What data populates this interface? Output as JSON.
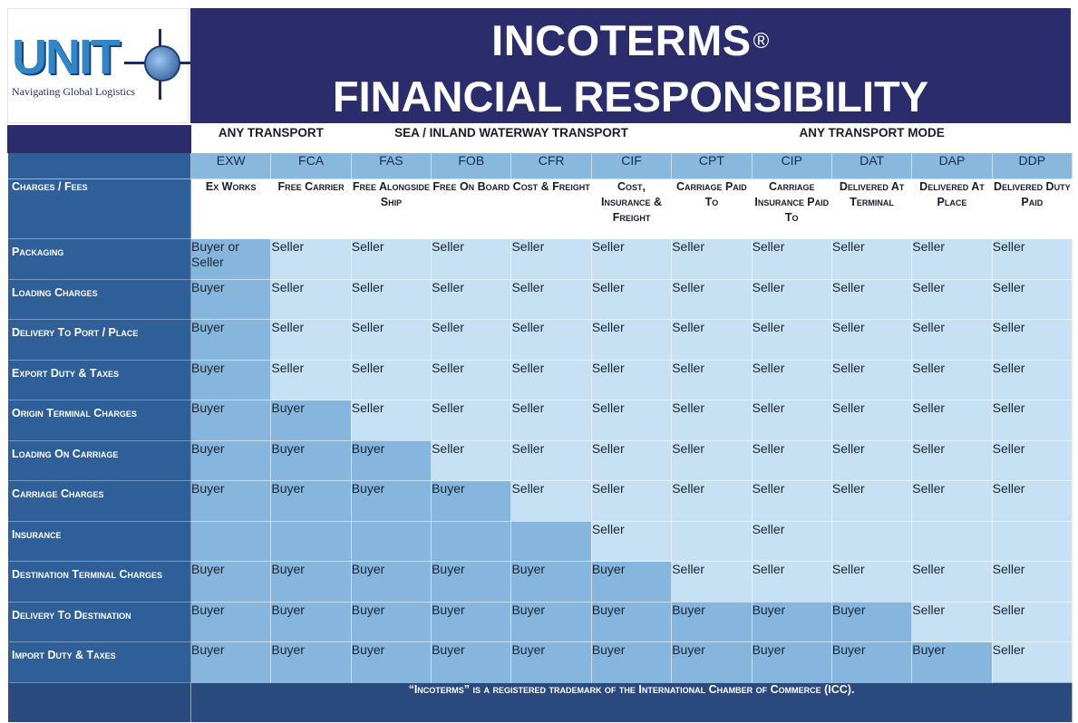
{
  "logo": {
    "name": "UNIT",
    "tagline": "Navigating Global Logistics"
  },
  "header": {
    "title": "INCOTERMS",
    "reg_mark": "®",
    "subtitle": "FINANCIAL RESPONSIBILITY"
  },
  "groups": [
    {
      "label": "ANY TRANSPORT",
      "span": 2
    },
    {
      "label": "SEA / INLAND WATERWAY TRANSPORT",
      "span": 4
    },
    {
      "label": "ANY TRANSPORT MODE",
      "span": 5
    }
  ],
  "charges_header": "Charges / Fees",
  "terms": [
    {
      "code": "EXW",
      "name": "Ex Works"
    },
    {
      "code": "FCA",
      "name": "Free Carrier"
    },
    {
      "code": "FAS",
      "name": "Free Alongside Ship"
    },
    {
      "code": "FOB",
      "name": "Free On Board"
    },
    {
      "code": "CFR",
      "name": "Cost & Freight"
    },
    {
      "code": "CIF",
      "name": "Cost, Insurance & Freight"
    },
    {
      "code": "CPT",
      "name": "Carriage Paid To"
    },
    {
      "code": "CIP",
      "name": "Carriage Insurance Paid To"
    },
    {
      "code": "DAT",
      "name": "Delivered At Terminal"
    },
    {
      "code": "DAP",
      "name": "Delivered At Place"
    },
    {
      "code": "DDP",
      "name": "Delivered Duty Paid"
    }
  ],
  "rows": [
    {
      "label": "Packaging",
      "values": [
        "Buyer or Seller",
        "Seller",
        "Seller",
        "Seller",
        "Seller",
        "Seller",
        "Seller",
        "Seller",
        "Seller",
        "Seller",
        "Seller"
      ]
    },
    {
      "label": "Loading Charges",
      "values": [
        "Buyer",
        "Seller",
        "Seller",
        "Seller",
        "Seller",
        "Seller",
        "Seller",
        "Seller",
        "Seller",
        "Seller",
        "Seller"
      ]
    },
    {
      "label": "Delivery To Port / Place",
      "values": [
        "Buyer",
        "Seller",
        "Seller",
        "Seller",
        "Seller",
        "Seller",
        "Seller",
        "Seller",
        "Seller",
        "Seller",
        "Seller"
      ]
    },
    {
      "label": "Export Duty & Taxes",
      "values": [
        "Buyer",
        "Seller",
        "Seller",
        "Seller",
        "Seller",
        "Seller",
        "Seller",
        "Seller",
        "Seller",
        "Seller",
        "Seller"
      ]
    },
    {
      "label": "Origin Terminal Charges",
      "values": [
        "Buyer",
        "Buyer",
        "Seller",
        "Seller",
        "Seller",
        "Seller",
        "Seller",
        "Seller",
        "Seller",
        "Seller",
        "Seller"
      ]
    },
    {
      "label": "Loading On Carriage",
      "values": [
        "Buyer",
        "Buyer",
        "Buyer",
        "Seller",
        "Seller",
        "Seller",
        "Seller",
        "Seller",
        "Seller",
        "Seller",
        "Seller"
      ]
    },
    {
      "label": "Carriage Charges",
      "values": [
        "Buyer",
        "Buyer",
        "Buyer",
        "Buyer",
        "Seller",
        "Seller",
        "Seller",
        "Seller",
        "Seller",
        "Seller",
        "Seller"
      ]
    },
    {
      "label": "Insurance",
      "values": [
        "",
        "",
        "",
        "",
        "",
        "Seller",
        "",
        "Seller",
        "",
        "",
        ""
      ]
    },
    {
      "label": "Destination Terminal Charges",
      "values": [
        "Buyer",
        "Buyer",
        "Buyer",
        "Buyer",
        "Buyer",
        "Buyer",
        "Seller",
        "Seller",
        "Seller",
        "Seller",
        "Seller"
      ]
    },
    {
      "label": "Delivery To Destination",
      "values": [
        "Buyer",
        "Buyer",
        "Buyer",
        "Buyer",
        "Buyer",
        "Buyer",
        "Buyer",
        "Buyer",
        "Buyer",
        "Seller",
        "Seller"
      ]
    },
    {
      "label": "Import Duty & Taxes",
      "values": [
        "Buyer",
        "Buyer",
        "Buyer",
        "Buyer",
        "Buyer",
        "Buyer",
        "Buyer",
        "Buyer",
        "Buyer",
        "Buyer",
        "Seller"
      ]
    }
  ],
  "footer": "“Incoterms” is a registered trademark of the International Chamber of Commerce (ICC).",
  "colors": {
    "navy": "#2a2c6c",
    "label_blue": "#2f5f99",
    "buyer": "#86b6de",
    "seller": "#c6e0f4"
  }
}
